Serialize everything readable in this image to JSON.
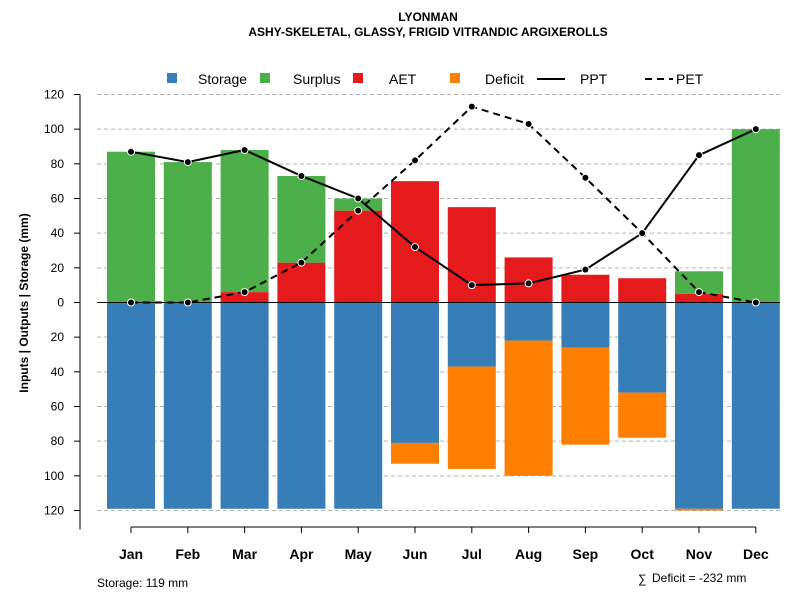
{
  "chart_data": {
    "type": "bar",
    "title": "LYONMAN",
    "subtitle": "ASHY-SKELETAL, GLASSY, FRIGID VITRANDIC ARGIXEROLLS",
    "ylabel": "Inputs | Outputs | Storage    (mm)",
    "xlabel": "",
    "ylim": [
      -120,
      120
    ],
    "yticks": [
      120,
      100,
      80,
      60,
      40,
      20,
      0,
      -20,
      -40,
      -60,
      -80,
      -100,
      -120
    ],
    "ytick_labels": [
      "120",
      "100",
      "80",
      "60",
      "40",
      "20",
      "0",
      "20",
      "40",
      "60",
      "80",
      "100",
      "120"
    ],
    "grid": true,
    "legend_position": "top",
    "categories": [
      "Jan",
      "Feb",
      "Mar",
      "Apr",
      "May",
      "Jun",
      "Jul",
      "Aug",
      "Sep",
      "Oct",
      "Nov",
      "Dec"
    ],
    "series": [
      {
        "name": "Storage",
        "kind": "bar",
        "color": "#377EB8",
        "values": [
          -119,
          -119,
          -119,
          -119,
          -119,
          -81,
          -37,
          -22,
          -26,
          -52,
          -119,
          -119
        ]
      },
      {
        "name": "Surplus",
        "kind": "bar",
        "color": "#4DAF4A",
        "values": [
          87,
          81,
          82,
          50,
          7,
          0,
          0,
          0,
          0,
          0,
          13,
          100
        ]
      },
      {
        "name": "AET",
        "kind": "bar",
        "color": "#E41A1C",
        "values": [
          0,
          0,
          6,
          23,
          53,
          70,
          55,
          26,
          16,
          14,
          5,
          0
        ]
      },
      {
        "name": "Deficit",
        "kind": "bar",
        "color": "#FF7F00",
        "values": [
          0,
          0,
          0,
          0,
          0,
          -12,
          -59,
          -78,
          -56,
          -26,
          -1,
          0
        ]
      },
      {
        "name": "PPT",
        "kind": "line",
        "color": "#000000",
        "dash": "solid",
        "values": [
          87,
          81,
          88,
          73,
          60,
          32,
          10,
          11,
          19,
          40,
          85,
          100
        ]
      },
      {
        "name": "PET",
        "kind": "line",
        "color": "#000000",
        "dash": "dashed",
        "values": [
          0,
          0,
          6,
          23,
          53,
          82,
          113,
          103,
          72,
          40,
          6,
          0
        ]
      }
    ],
    "annotations": {
      "storage": "Storage: 119 mm",
      "deficit_symbol": "∑",
      "deficit": "Deficit = -232 mm"
    }
  }
}
